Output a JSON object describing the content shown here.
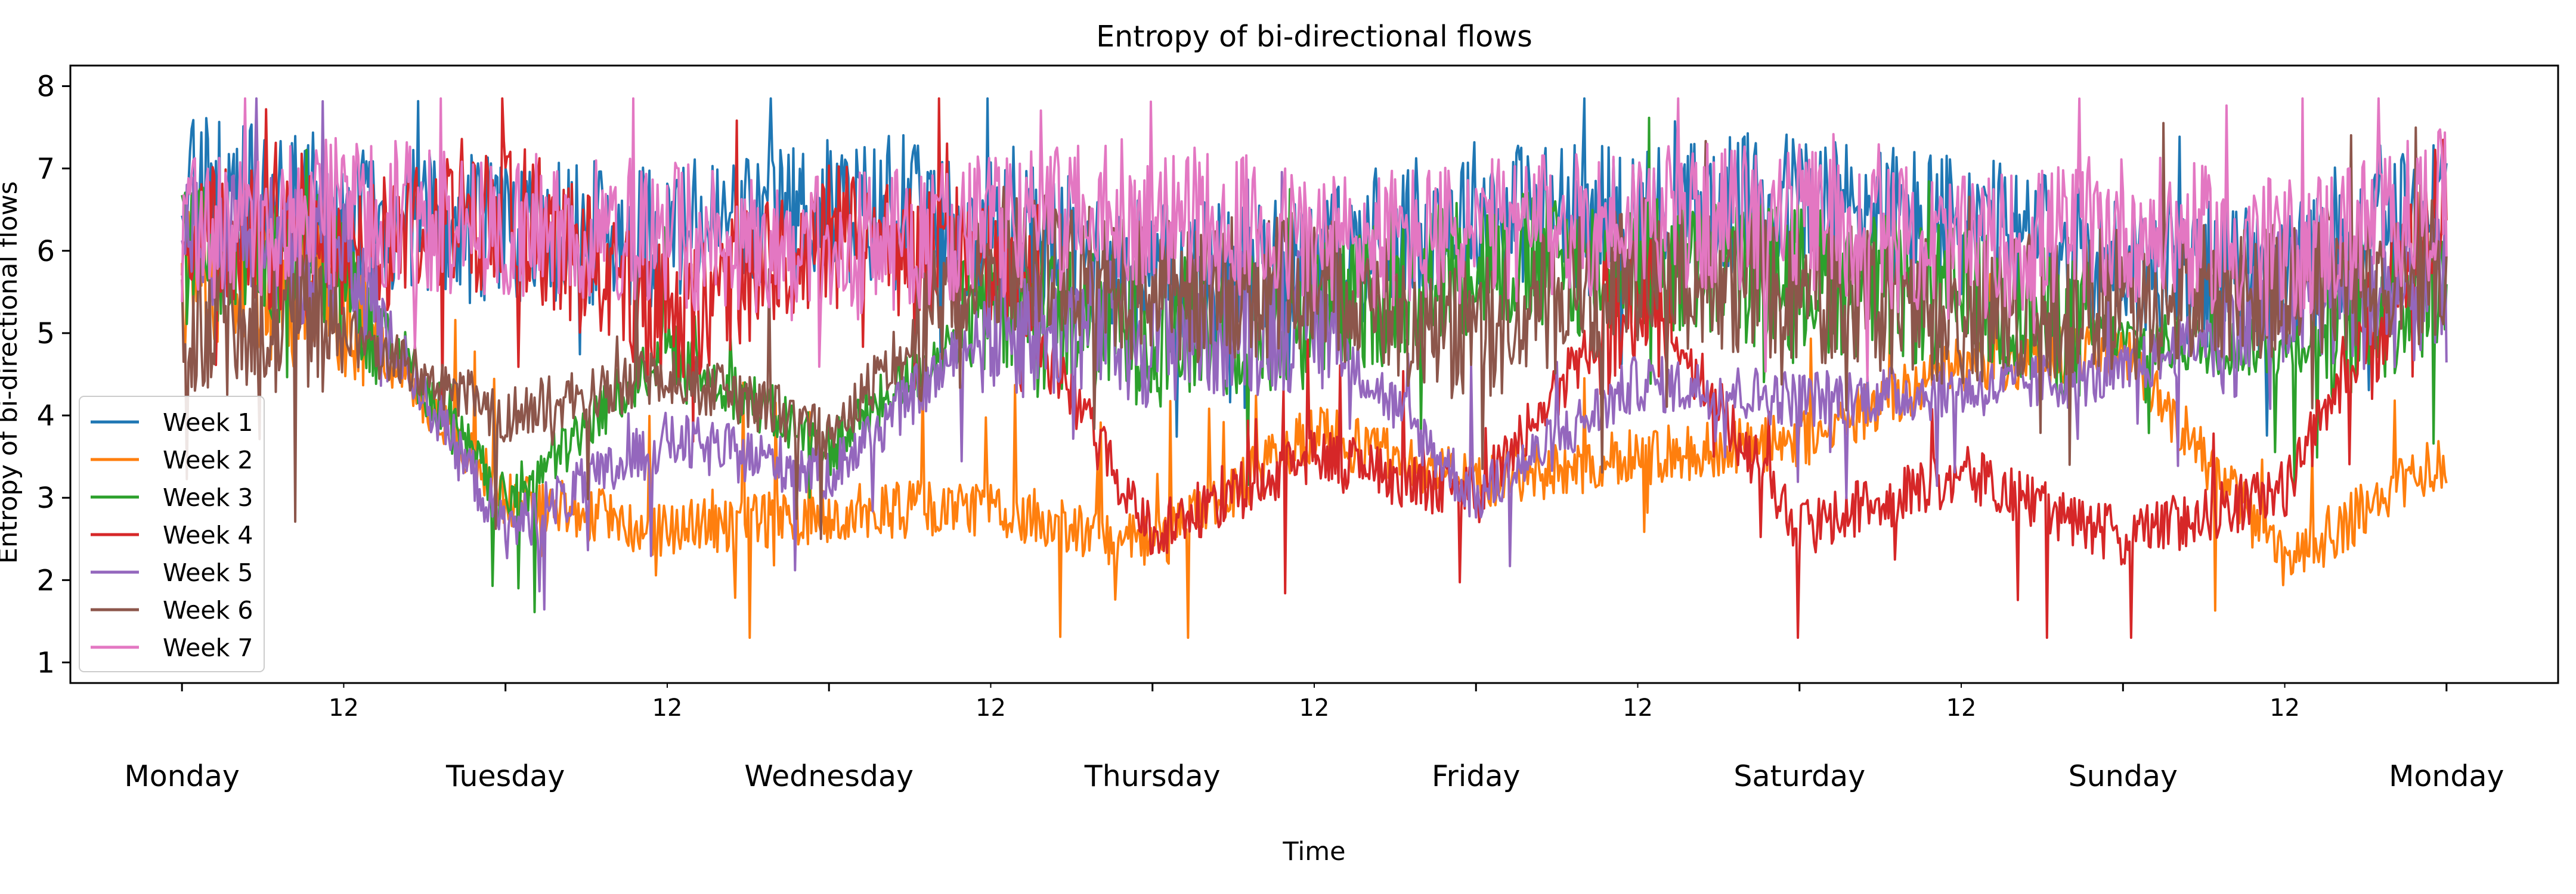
{
  "chart_data": {
    "type": "line",
    "title": "Entropy of bi-directional flows",
    "xlabel": "Time",
    "ylabel": "Entropy of bi-directional flows",
    "ylim": [
      0.75,
      8.25
    ],
    "yticks": [
      1,
      2,
      3,
      4,
      5,
      6,
      7,
      8
    ],
    "xlim_days": [
      -0.345,
      7.345
    ],
    "day_labels": [
      "Monday",
      "Tuesday",
      "Wednesday",
      "Thursday",
      "Friday",
      "Saturday",
      "Sunday",
      "Monday"
    ],
    "minor_tick_label": "12",
    "grid": false,
    "legend_position": "lower-left",
    "series": [
      {
        "name": "Week 1",
        "color": "#1f77b4",
        "x": [
          0,
          0.5,
          1,
          1.5,
          2,
          2.5,
          3,
          3.5,
          4,
          4.5,
          5,
          5.5,
          6,
          6.5,
          7
        ],
        "y": [
          6.8,
          6.5,
          6.2,
          6.2,
          6.5,
          6.3,
          5.7,
          5.8,
          6.5,
          6.4,
          6.6,
          6.3,
          5.8,
          5.6,
          6.6
        ]
      },
      {
        "name": "Week 2",
        "color": "#ff7f0e",
        "x": [
          0,
          0.5,
          1,
          1.5,
          2,
          2.5,
          3,
          3.5,
          4,
          4.5,
          5,
          5.5,
          6,
          6.5,
          7
        ],
        "y": [
          5.7,
          5.4,
          3.0,
          2.6,
          2.8,
          2.9,
          2.4,
          3.8,
          3.2,
          3.5,
          3.7,
          4.6,
          4.8,
          2.2,
          3.5
        ]
      },
      {
        "name": "Week 3",
        "color": "#2ca02c",
        "x": [
          0,
          0.5,
          1,
          1.5,
          2,
          2.5,
          3,
          3.5,
          4,
          4.5,
          5,
          5.5,
          6,
          6.5,
          7
        ],
        "y": [
          6.0,
          5.8,
          2.9,
          4.8,
          3.6,
          5.3,
          5.0,
          5.2,
          5.9,
          5.8,
          5.7,
          5.4,
          4.9,
          4.8,
          5.6
        ]
      },
      {
        "name": "Week 4",
        "color": "#d62728",
        "x": [
          0,
          0.5,
          1,
          1.5,
          2,
          2.5,
          3,
          3.5,
          4,
          4.5,
          5,
          5.5,
          6,
          6.5,
          7
        ],
        "y": [
          6.3,
          5.9,
          6.5,
          5.2,
          6.2,
          5.8,
          2.6,
          3.5,
          3.0,
          5.6,
          2.6,
          3.3,
          2.5,
          3.1,
          6.8
        ]
      },
      {
        "name": "Week 5",
        "color": "#9467bd",
        "x": [
          0,
          0.5,
          1,
          1.5,
          2,
          2.5,
          3,
          3.5,
          4,
          4.5,
          5,
          5.5,
          6,
          6.5,
          7
        ],
        "y": [
          6.2,
          5.9,
          2.6,
          3.7,
          3.3,
          5.1,
          5.0,
          5.2,
          3.0,
          4.4,
          4.2,
          4.3,
          4.5,
          5.4,
          5.5
        ]
      },
      {
        "name": "Week 6",
        "color": "#8c564b",
        "x": [
          0,
          0.5,
          1,
          1.5,
          2,
          2.5,
          3,
          3.5,
          4,
          4.5,
          5,
          5.5,
          6,
          6.5,
          7
        ],
        "y": [
          5.2,
          5.0,
          4.0,
          4.5,
          3.8,
          6.0,
          5.5,
          5.6,
          5.0,
          5.8,
          5.5,
          5.2,
          5.4,
          5.6,
          5.8
        ]
      },
      {
        "name": "Week 7",
        "color": "#e377c2",
        "x": [
          0,
          0.5,
          1,
          1.5,
          2,
          2.5,
          3,
          3.5,
          4,
          4.5,
          5,
          5.5,
          6,
          6.5,
          7
        ],
        "y": [
          6.2,
          6.5,
          6.3,
          6.2,
          6.0,
          6.3,
          6.5,
          6.1,
          6.2,
          6.4,
          6.4,
          6.0,
          6.3,
          6.0,
          6.6
        ]
      }
    ]
  }
}
